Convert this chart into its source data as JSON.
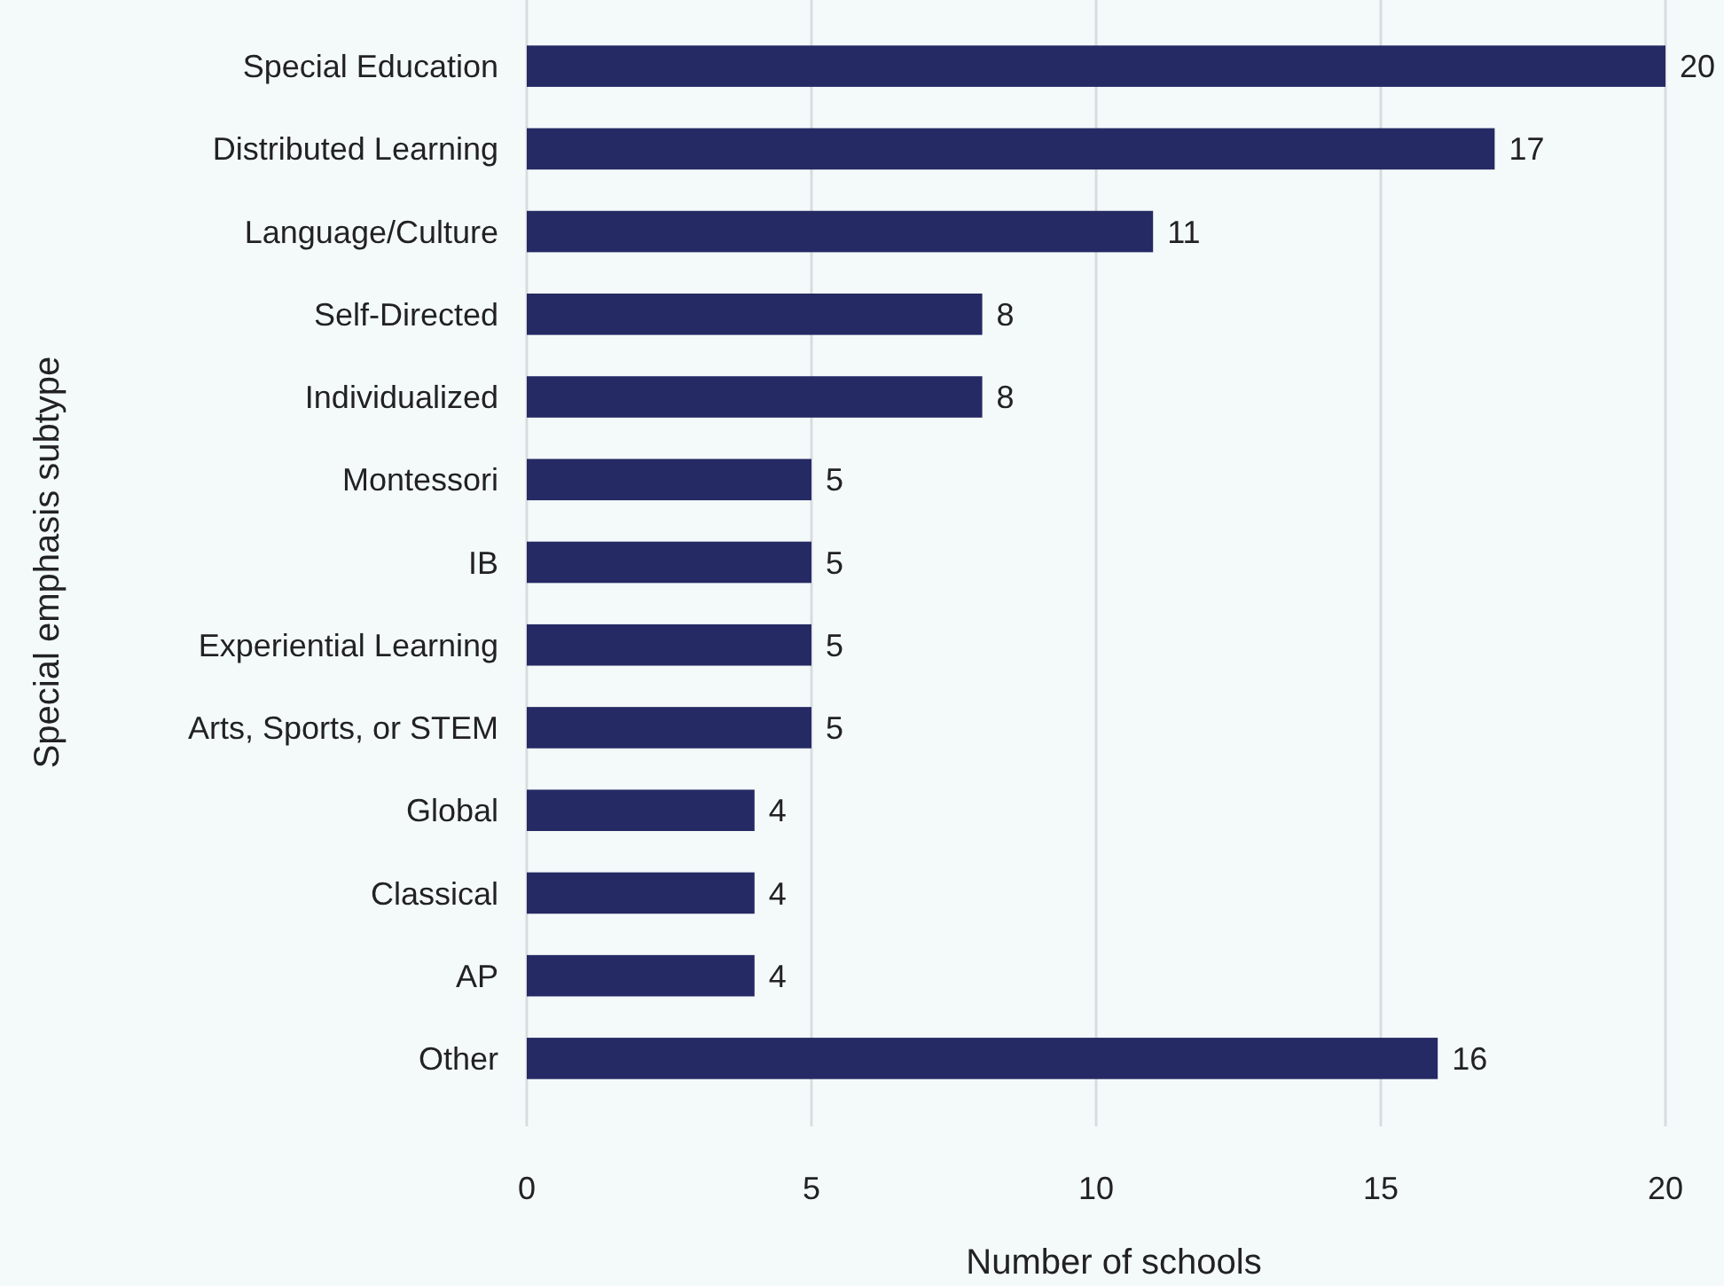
{
  "chart_data": {
    "type": "bar",
    "orientation": "horizontal",
    "xlabel": "Number of schools",
    "ylabel": "Special emphasis subtype",
    "categories": [
      "Special Education",
      "Distributed Learning",
      "Language/Culture",
      "Self-Directed",
      "Individualized",
      "Montessori",
      "IB",
      "Experiential Learning",
      "Arts, Sports, or STEM",
      "Global",
      "Classical",
      "AP",
      "Other"
    ],
    "values": [
      20,
      17,
      11,
      8,
      8,
      5,
      5,
      5,
      5,
      4,
      4,
      4,
      16
    ],
    "color": "#252a64",
    "xlim": [
      0,
      20
    ],
    "xticks": [
      0,
      5,
      10,
      15,
      20
    ],
    "grid": "x",
    "data_labels": true
  }
}
